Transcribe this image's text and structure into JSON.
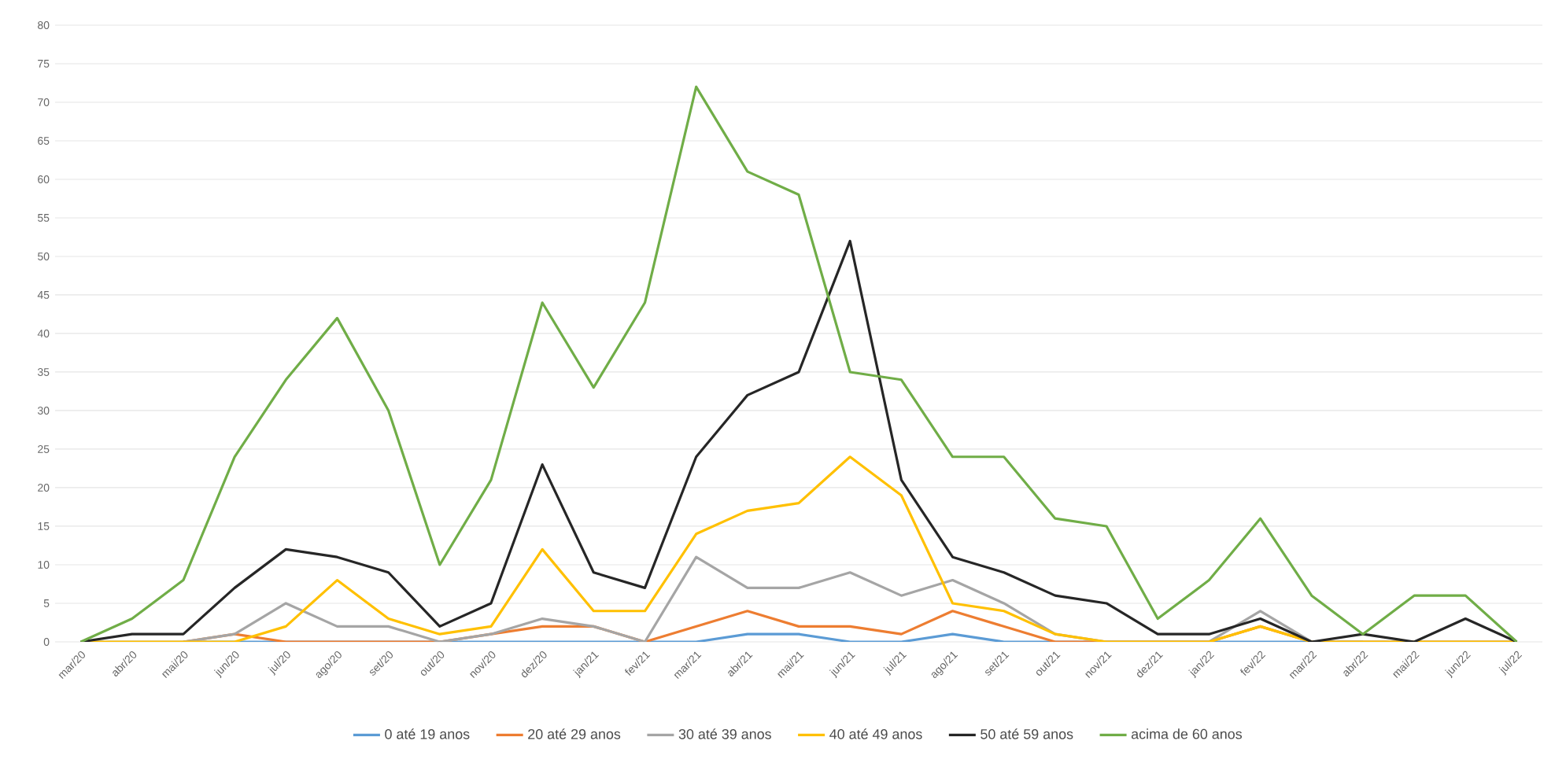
{
  "chart_data": {
    "type": "line",
    "categories": [
      "mar/20",
      "abr/20",
      "mai/20",
      "jun/20",
      "jul/20",
      "ago/20",
      "set/20",
      "out/20",
      "nov/20",
      "dez/20",
      "jan/21",
      "fev/21",
      "mar/21",
      "abr/21",
      "mai/21",
      "jun/21",
      "jul/21",
      "ago/21",
      "set/21",
      "out/21",
      "nov/21",
      "dez/21",
      "jan/22",
      "fev/22",
      "mar/22",
      "abr/22",
      "mai/22",
      "jun/22",
      "jul/22"
    ],
    "series": [
      {
        "name": "0 até 19 anos",
        "color": "#5b9bd5",
        "values": [
          null,
          null,
          0,
          0,
          0,
          0,
          0,
          0,
          0,
          0,
          0,
          0,
          0,
          1,
          1,
          0,
          0,
          1,
          0,
          0,
          0,
          0,
          0,
          0,
          0,
          0,
          null,
          null,
          null
        ]
      },
      {
        "name": "20 até 29 anos",
        "color": "#ed7d31",
        "values": [
          null,
          null,
          0,
          1,
          0,
          0,
          0,
          0,
          1,
          2,
          2,
          0,
          2,
          4,
          2,
          2,
          1,
          4,
          2,
          0,
          0,
          0,
          0,
          2,
          0,
          0,
          0,
          0,
          0
        ]
      },
      {
        "name": "30 até 39 anos",
        "color": "#a5a5a5",
        "values": [
          0,
          0,
          0,
          1,
          5,
          2,
          2,
          0,
          1,
          3,
          2,
          0,
          11,
          7,
          7,
          9,
          6,
          8,
          5,
          1,
          0,
          0,
          0,
          4,
          0,
          0,
          0,
          0,
          0
        ]
      },
      {
        "name": "40 até 49 anos",
        "color": "#ffc000",
        "values": [
          0,
          0,
          0,
          0,
          2,
          8,
          3,
          1,
          2,
          12,
          4,
          4,
          14,
          17,
          18,
          24,
          19,
          5,
          4,
          1,
          0,
          0,
          0,
          2,
          0,
          0,
          0,
          0,
          0
        ]
      },
      {
        "name": "50 até 59 anos",
        "color": "#262626",
        "values": [
          0,
          1,
          1,
          7,
          12,
          11,
          9,
          2,
          5,
          23,
          9,
          7,
          24,
          32,
          35,
          52,
          21,
          11,
          9,
          6,
          5,
          1,
          1,
          3,
          0,
          1,
          0,
          3,
          0
        ]
      },
      {
        "name": "acima de 60 anos",
        "color": "#70ad47",
        "values": [
          0,
          3,
          8,
          24,
          34,
          42,
          30,
          10,
          21,
          44,
          33,
          44,
          72,
          61,
          58,
          35,
          34,
          24,
          24,
          16,
          15,
          3,
          8,
          16,
          6,
          1,
          6,
          6,
          0
        ]
      }
    ],
    "ylim": [
      0,
      80
    ],
    "yticks": [
      0,
      5,
      10,
      15,
      20,
      25,
      30,
      35,
      40,
      45,
      50,
      55,
      60,
      65,
      70,
      75,
      80
    ],
    "grid": "y",
    "legend": "bottom",
    "marker": "none",
    "line_style": "solid"
  }
}
